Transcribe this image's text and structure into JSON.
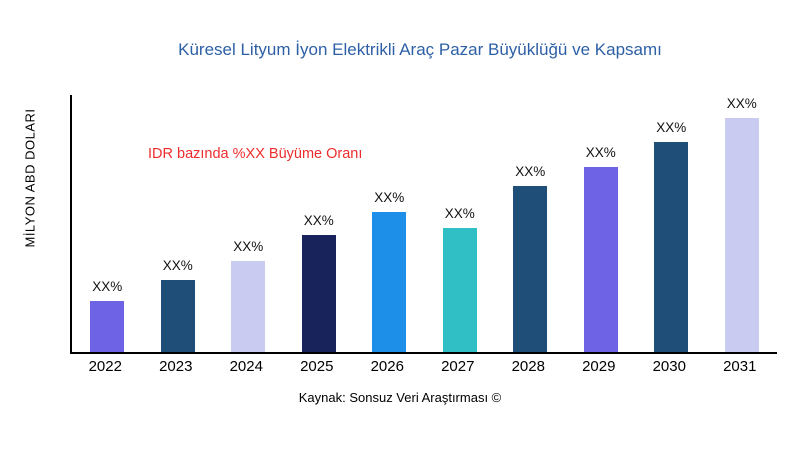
{
  "chart_data": {
    "type": "bar",
    "title": "Küresel Lityum İyon Elektrikli Araç Pazar Büyüklüğü ve Kapsamı",
    "ylabel": "MİLYON ABD DOLARI",
    "annotation": "IDR bazında %XX Büyüme Oranı",
    "source": "Kaynak: Sonsuz Veri Araştırması ©",
    "categories": [
      "2022",
      "2023",
      "2024",
      "2025",
      "2026",
      "2027",
      "2028",
      "2029",
      "2030",
      "2031"
    ],
    "values": [
      22,
      31,
      39,
      50,
      60,
      53,
      71,
      79,
      90,
      100
    ],
    "value_labels": [
      "XX%",
      "XX%",
      "XX%",
      "XX%",
      "XX%",
      "XX%",
      "XX%",
      "XX%",
      "XX%",
      "XX%"
    ],
    "bar_colors": [
      "#6E62E5",
      "#1F4E79",
      "#C9CCF0",
      "#18235C",
      "#1E8FE8",
      "#2FBFC4",
      "#1F4E79",
      "#6E62E5",
      "#1F4E79",
      "#C9CCF0"
    ],
    "ylim": [
      0,
      110
    ],
    "grid": false,
    "legend": "none",
    "title_color": "#2D5FA6",
    "annotation_color": "#EE2C2C"
  }
}
